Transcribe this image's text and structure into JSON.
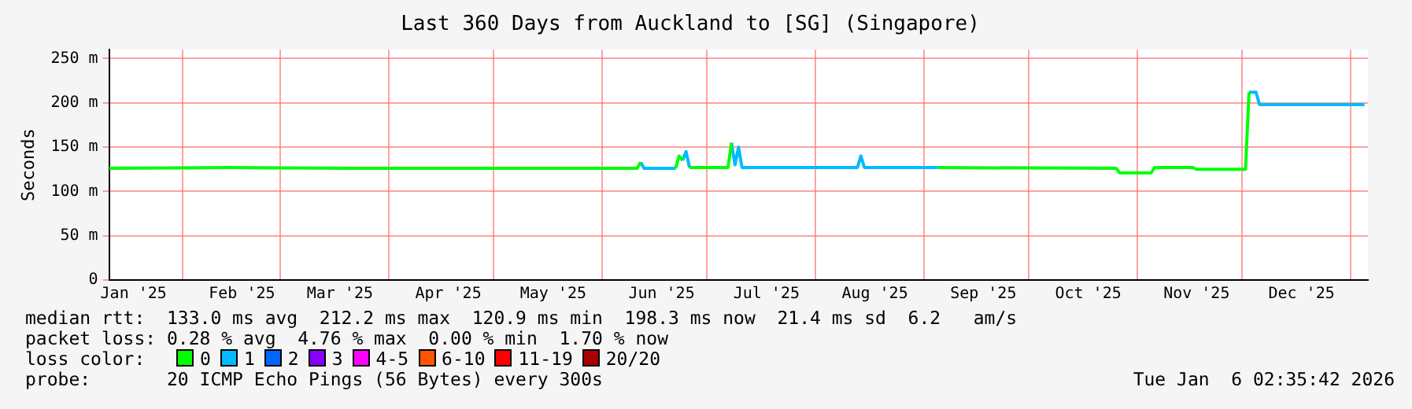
{
  "chart_data": {
    "type": "line",
    "title": "Last 360 Days from Auckland to [SG] (Singapore)",
    "ylabel": "Seconds",
    "x": [
      "2025-01-11",
      "2025-02-15",
      "2025-03-20",
      "2025-06-11",
      "2025-06-12",
      "2025-06-13",
      "2025-06-22",
      "2025-06-23",
      "2025-06-24",
      "2025-06-25",
      "2025-06-26",
      "2025-07-07",
      "2025-07-08",
      "2025-07-09",
      "2025-07-10",
      "2025-07-11",
      "2025-08-13",
      "2025-08-14",
      "2025-08-15",
      "2025-09-05",
      "2025-10-26",
      "2025-10-27",
      "2025-11-05",
      "2025-11-06",
      "2025-11-17",
      "2025-11-18",
      "2025-12-02",
      "2025-12-03",
      "2025-12-05",
      "2025-12-06",
      "2026-01-05"
    ],
    "legend_title": "loss color:",
    "series": [
      {
        "name": "0",
        "color": "#00ff00",
        "values": [
          126,
          127,
          126,
          126,
          133,
          null,
          126,
          140,
          135,
          null,
          127,
          127,
          155,
          null,
          null,
          null,
          null,
          null,
          null,
          127,
          126,
          121,
          121,
          127,
          127,
          125,
          125,
          212,
          null,
          null,
          null
        ]
      },
      {
        "name": "1",
        "color": "#00bbff",
        "values": [
          null,
          null,
          null,
          null,
          133,
          126,
          126,
          null,
          135,
          145,
          127,
          null,
          155,
          130,
          150,
          127,
          127,
          140,
          127,
          127,
          null,
          null,
          null,
          null,
          null,
          null,
          null,
          212,
          212,
          198,
          198
        ]
      },
      {
        "name": "2",
        "color": "#0066ff",
        "values": [
          null,
          null,
          null,
          null,
          null,
          null,
          null,
          null,
          null,
          null,
          null,
          null,
          null,
          null,
          null,
          null,
          null,
          null,
          null,
          null,
          null,
          null,
          null,
          null,
          null,
          null,
          null,
          null,
          null,
          null,
          null
        ]
      },
      {
        "name": "3",
        "color": "#8800ff",
        "values": [
          null,
          null,
          null,
          null,
          null,
          null,
          null,
          null,
          null,
          null,
          null,
          null,
          null,
          null,
          null,
          null,
          null,
          null,
          null,
          null,
          null,
          null,
          null,
          null,
          null,
          null,
          null,
          null,
          null,
          null,
          null
        ]
      },
      {
        "name": "4-5",
        "color": "#ff00ff",
        "values": [
          null,
          null,
          null,
          null,
          null,
          null,
          null,
          null,
          null,
          null,
          null,
          null,
          null,
          null,
          null,
          null,
          null,
          null,
          null,
          null,
          null,
          null,
          null,
          null,
          null,
          null,
          null,
          null,
          null,
          null,
          null
        ]
      },
      {
        "name": "6-10",
        "color": "#ff5500",
        "values": [
          null,
          null,
          null,
          null,
          null,
          null,
          null,
          null,
          null,
          null,
          null,
          null,
          null,
          null,
          null,
          null,
          null,
          null,
          null,
          null,
          null,
          null,
          null,
          null,
          null,
          null,
          null,
          null,
          null,
          null,
          null
        ]
      },
      {
        "name": "11-19",
        "color": "#ff0000",
        "values": [
          null,
          null,
          null,
          null,
          null,
          null,
          null,
          null,
          null,
          null,
          null,
          null,
          null,
          null,
          null,
          null,
          null,
          null,
          null,
          null,
          null,
          null,
          null,
          null,
          null,
          null,
          null,
          null,
          null,
          null,
          null
        ]
      },
      {
        "name": "20/20",
        "color": "#aa0000",
        "values": [
          null,
          null,
          null,
          null,
          null,
          null,
          null,
          null,
          null,
          null,
          null,
          null,
          null,
          null,
          null,
          null,
          null,
          null,
          null,
          null,
          null,
          null,
          null,
          null,
          null,
          null,
          null,
          null,
          null,
          null,
          null
        ]
      }
    ],
    "xlim": [
      "2025-01-11",
      "2026-01-06"
    ],
    "xticks": [
      {
        "value": "2025-01-18",
        "label": "Jan '25"
      },
      {
        "value": "2025-02-01",
        "label": null
      },
      {
        "value": "2025-02-18",
        "label": "Feb '25"
      },
      {
        "value": "2025-03-01",
        "label": null
      },
      {
        "value": "2025-03-18",
        "label": "Mar '25"
      },
      {
        "value": "2025-04-01",
        "label": null
      },
      {
        "value": "2025-04-18",
        "label": "Apr '25"
      },
      {
        "value": "2025-05-01",
        "label": null
      },
      {
        "value": "2025-05-18",
        "label": "May '25"
      },
      {
        "value": "2025-06-01",
        "label": null
      },
      {
        "value": "2025-06-18",
        "label": "Jun '25"
      },
      {
        "value": "2025-07-01",
        "label": null
      },
      {
        "value": "2025-07-18",
        "label": "Jul '25"
      },
      {
        "value": "2025-08-01",
        "label": null
      },
      {
        "value": "2025-08-18",
        "label": "Aug '25"
      },
      {
        "value": "2025-09-01",
        "label": null
      },
      {
        "value": "2025-09-18",
        "label": "Sep '25"
      },
      {
        "value": "2025-10-01",
        "label": null
      },
      {
        "value": "2025-10-18",
        "label": "Oct '25"
      },
      {
        "value": "2025-11-01",
        "label": null
      },
      {
        "value": "2025-11-18",
        "label": "Nov '25"
      },
      {
        "value": "2025-12-01",
        "label": null
      },
      {
        "value": "2025-12-18",
        "label": "Dec '25"
      },
      {
        "value": "2026-01-01",
        "label": null
      }
    ],
    "ylim": [
      0,
      260
    ],
    "yticks": [
      0,
      {
        "value": 50,
        "label": "50 m"
      },
      {
        "value": 100,
        "label": "100 m"
      },
      {
        "value": 150,
        "label": "150 m"
      },
      {
        "value": 200,
        "label": "200 m"
      },
      {
        "value": 250,
        "label": "250 m"
      }
    ],
    "grid": true,
    "legend": "bottom",
    "marker": "none",
    "line_style": "solid",
    "annotations": [
      "median rtt:  133.0 ms avg  212.2 ms max  120.9 ms min  198.3 ms now  21.4 ms sd  6.2   am/s",
      "packet loss: 0.28 % avg  4.76 % max  0.00 % min  1.70 % now",
      "probe:       20 ICMP Echo Pings (56 Bytes) every 300s",
      "Tue Jan  6 02:35:42 2026"
    ]
  }
}
